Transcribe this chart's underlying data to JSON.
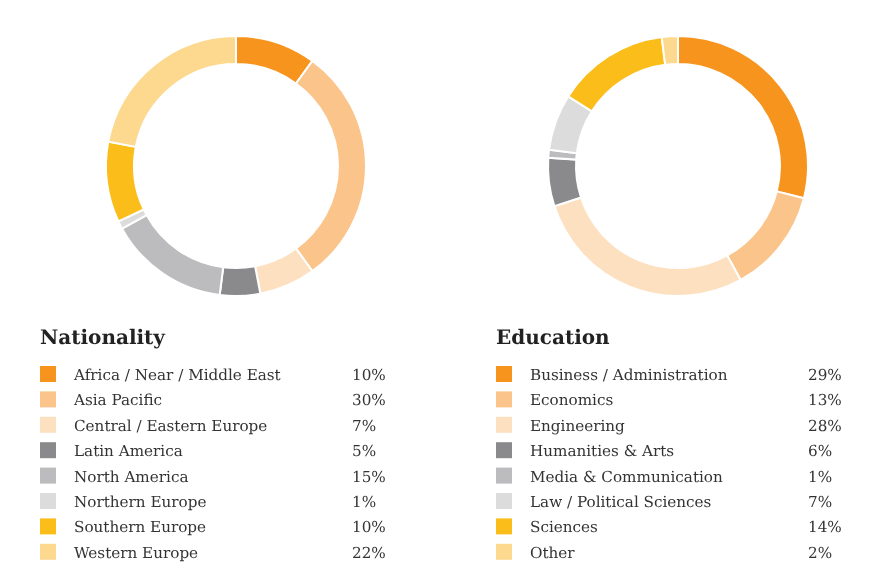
{
  "chart_data": [
    {
      "type": "donut",
      "title": "Nationality",
      "legend": "bottom",
      "categories": [
        "Africa / Near / Middle East",
        "Asia Pacific",
        "Central / Eastern Europe",
        "Latin America",
        "North America",
        "Northern Europe",
        "Southern Europe",
        "Western Europe"
      ],
      "values": [
        10,
        30,
        7,
        5,
        15,
        1,
        10,
        22
      ],
      "value_labels": [
        "10%",
        "30%",
        "7%",
        "5%",
        "15%",
        "1%",
        "10%",
        "22%"
      ],
      "colors": [
        "#f7941d",
        "#fbc48a",
        "#fde0c0",
        "#8a8a8c",
        "#bcbcbe",
        "#dcdcdc",
        "#fbbd19",
        "#fdd98f"
      ]
    },
    {
      "type": "donut",
      "title": "Education",
      "legend": "bottom",
      "categories": [
        "Business / Administration",
        "Economics",
        "Engineering",
        "Humanities & Arts",
        "Media & Communication",
        "Law / Political Sciences",
        "Sciences",
        "Other"
      ],
      "values": [
        29,
        13,
        28,
        6,
        1,
        7,
        14,
        2
      ],
      "value_labels": [
        "29%",
        "13%",
        "28%",
        "6%",
        "1%",
        "7%",
        "14%",
        "2%"
      ],
      "colors": [
        "#f7941d",
        "#fbc48a",
        "#fde0c0",
        "#8a8a8c",
        "#bcbcbe",
        "#dcdcdc",
        "#fbbd19",
        "#fdd98f"
      ]
    }
  ]
}
